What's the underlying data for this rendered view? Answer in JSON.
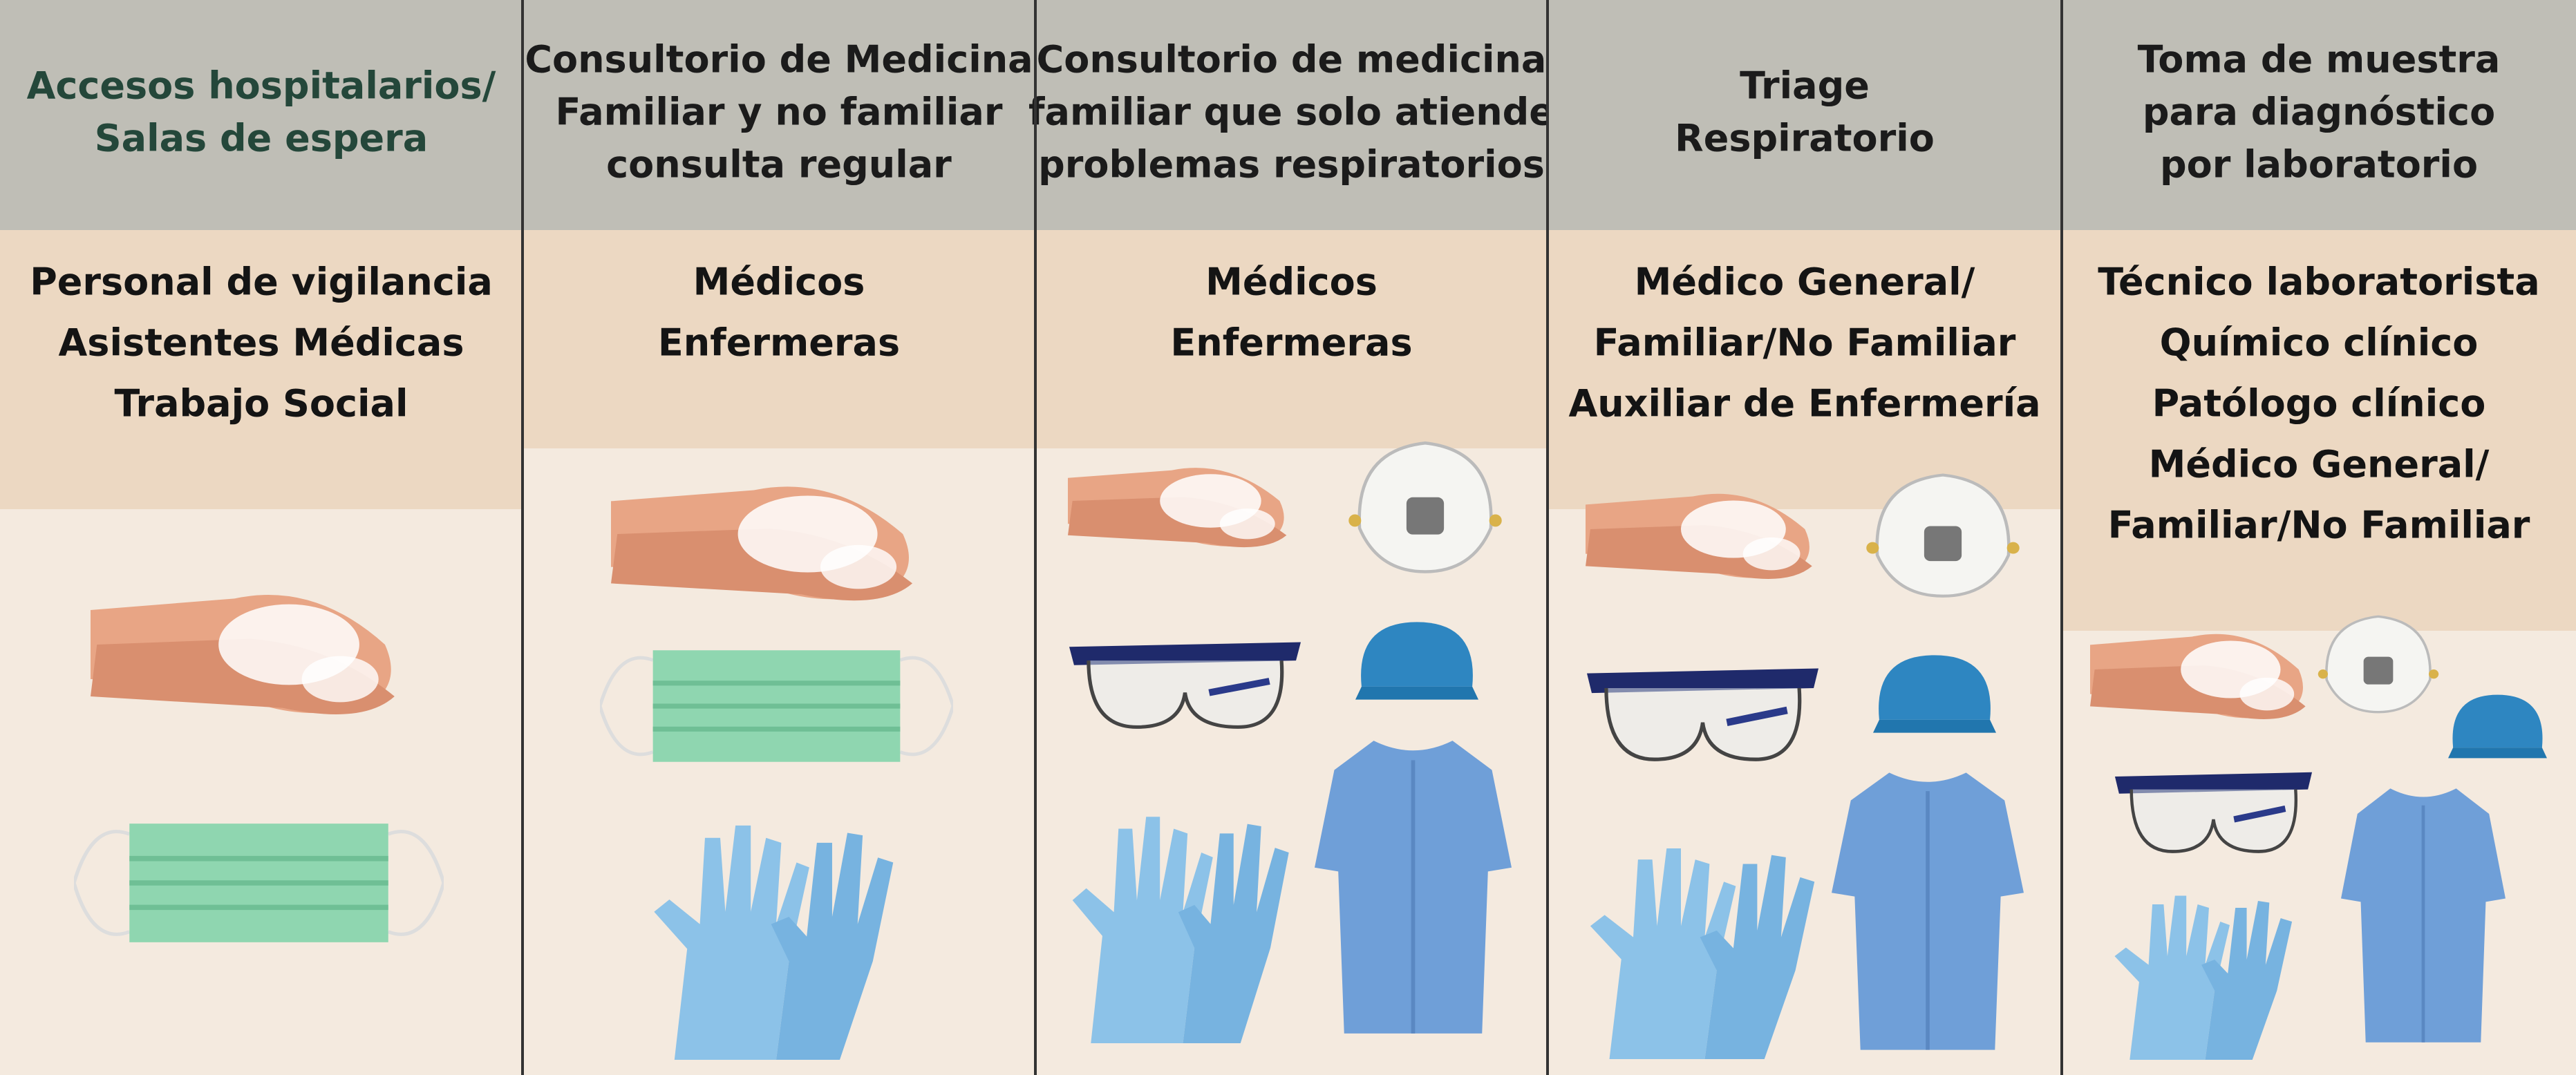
{
  "columns": [
    {
      "title": [
        "Accesos hospitalarios/",
        "Salas de espera"
      ],
      "roles": [
        "Personal de vigilancia",
        "Asistentes Médicas",
        "Trabajo Social"
      ]
    },
    {
      "title": [
        "Consultorio de Medicina",
        "Familiar y no familiar",
        "consulta regular"
      ],
      "roles": [
        "Médicos",
        "Enfermeras"
      ]
    },
    {
      "title": [
        "Consultorio de medicina",
        "familiar que solo atiende",
        "problemas respiratorios"
      ],
      "roles": [
        "Médicos",
        "Enfermeras"
      ]
    },
    {
      "title": [
        "Triage",
        "Respiratorio"
      ],
      "roles": [
        "Médico General/",
        "Familiar/No Familiar",
        "Auxiliar de Enfermería"
      ]
    },
    {
      "title": [
        "Toma de muestra",
        "para diagnóstico",
        "por laboratorio"
      ],
      "roles": [
        "Técnico laboratorista",
        "Químico clínico",
        "Patólogo clínico",
        "Médico General/",
        "Familiar/No Familiar"
      ]
    }
  ]
}
